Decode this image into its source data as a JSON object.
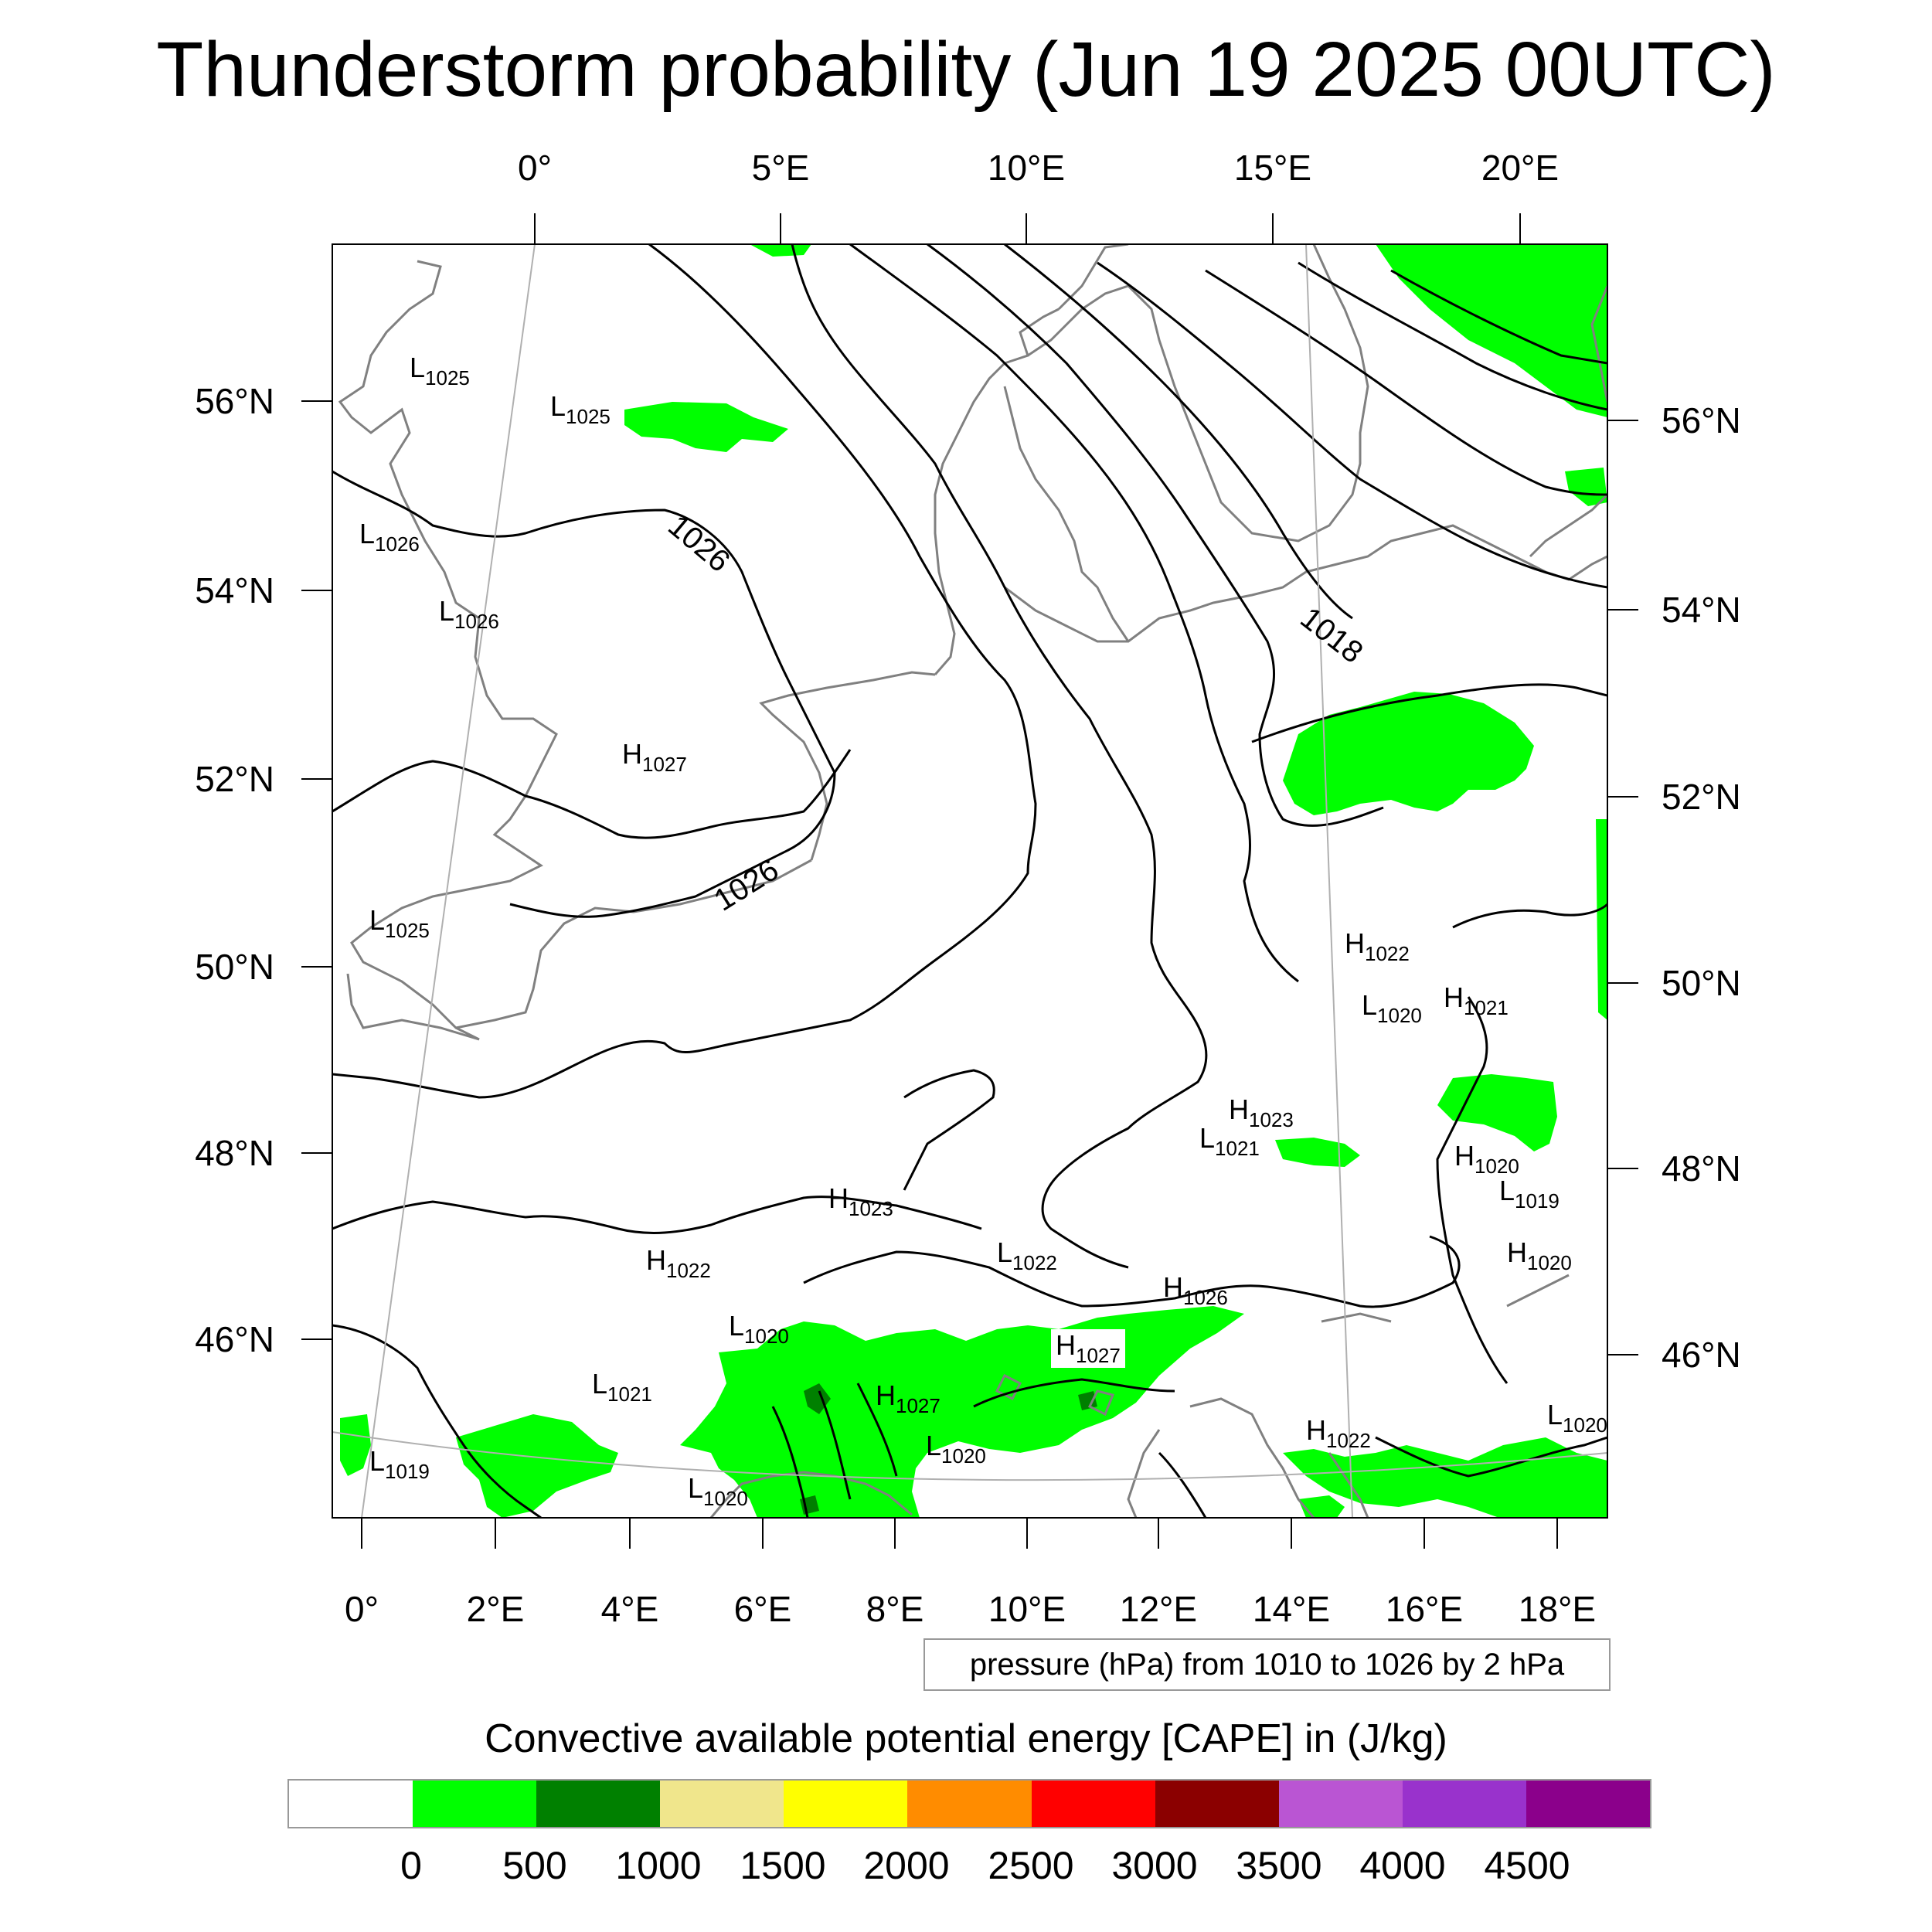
{
  "title": "Thunderstorm probability (Jun 19 2025 00UTC)",
  "map": {
    "top_lon_labels": [
      "0°",
      "5°E",
      "10°E",
      "15°E",
      "20°E"
    ],
    "bottom_lon_labels": [
      "0°",
      "2°E",
      "4°E",
      "6°E",
      "8°E",
      "10°E",
      "12°E",
      "14°E",
      "16°E",
      "18°E"
    ],
    "left_lat_labels": [
      "56°N",
      "54°N",
      "52°N",
      "50°N",
      "48°N",
      "46°N"
    ],
    "right_lat_labels": [
      "56°N",
      "54°N",
      "52°N",
      "50°N",
      "48°N",
      "46°N"
    ],
    "contour_labels": [
      "1026",
      "1026",
      "1018"
    ],
    "pressure_centers": [
      {
        "type": "L",
        "value": "1025"
      },
      {
        "type": "L",
        "value": "1025"
      },
      {
        "type": "L",
        "value": "1026"
      },
      {
        "type": "L",
        "value": "1026"
      },
      {
        "type": "H",
        "value": "1027"
      },
      {
        "type": "L",
        "value": "1025"
      },
      {
        "type": "H",
        "value": "1022"
      },
      {
        "type": "L",
        "value": "1020"
      },
      {
        "type": "H",
        "value": "1021"
      },
      {
        "type": "H",
        "value": "1023"
      },
      {
        "type": "L",
        "value": "1021"
      },
      {
        "type": "H",
        "value": "1020"
      },
      {
        "type": "L",
        "value": "1019"
      },
      {
        "type": "H",
        "value": "1020"
      },
      {
        "type": "H",
        "value": "1023"
      },
      {
        "type": "H",
        "value": "1022"
      },
      {
        "type": "L",
        "value": "1022"
      },
      {
        "type": "H",
        "value": "1026"
      },
      {
        "type": "L",
        "value": "1020"
      },
      {
        "type": "H",
        "value": "1027"
      },
      {
        "type": "L",
        "value": "1021"
      },
      {
        "type": "H",
        "value": "1027"
      },
      {
        "type": "L",
        "value": "1020"
      },
      {
        "type": "L",
        "value": "1019"
      },
      {
        "type": "L",
        "value": "1020"
      },
      {
        "type": "H",
        "value": "1022"
      },
      {
        "type": "L",
        "value": "1020"
      }
    ],
    "cape_color": "#00ff00",
    "contour_color": "#000000",
    "coast_color": "#808080"
  },
  "info_box": "pressure (hPa) from 1010 to 1026 by 2 hPa",
  "colorbar": {
    "title": "Convective available potential energy [CAPE] in (J/kg)",
    "colors": [
      "#ffffff",
      "#00ff00",
      "#008000",
      "#f0e68c",
      "#ffff00",
      "#ff8c00",
      "#ff0000",
      "#8b0000",
      "#ba55d3",
      "#9932cc",
      "#8b008b"
    ],
    "labels": [
      "0",
      "500",
      "1000",
      "1500",
      "2000",
      "2500",
      "3000",
      "3500",
      "4000",
      "4500"
    ]
  }
}
